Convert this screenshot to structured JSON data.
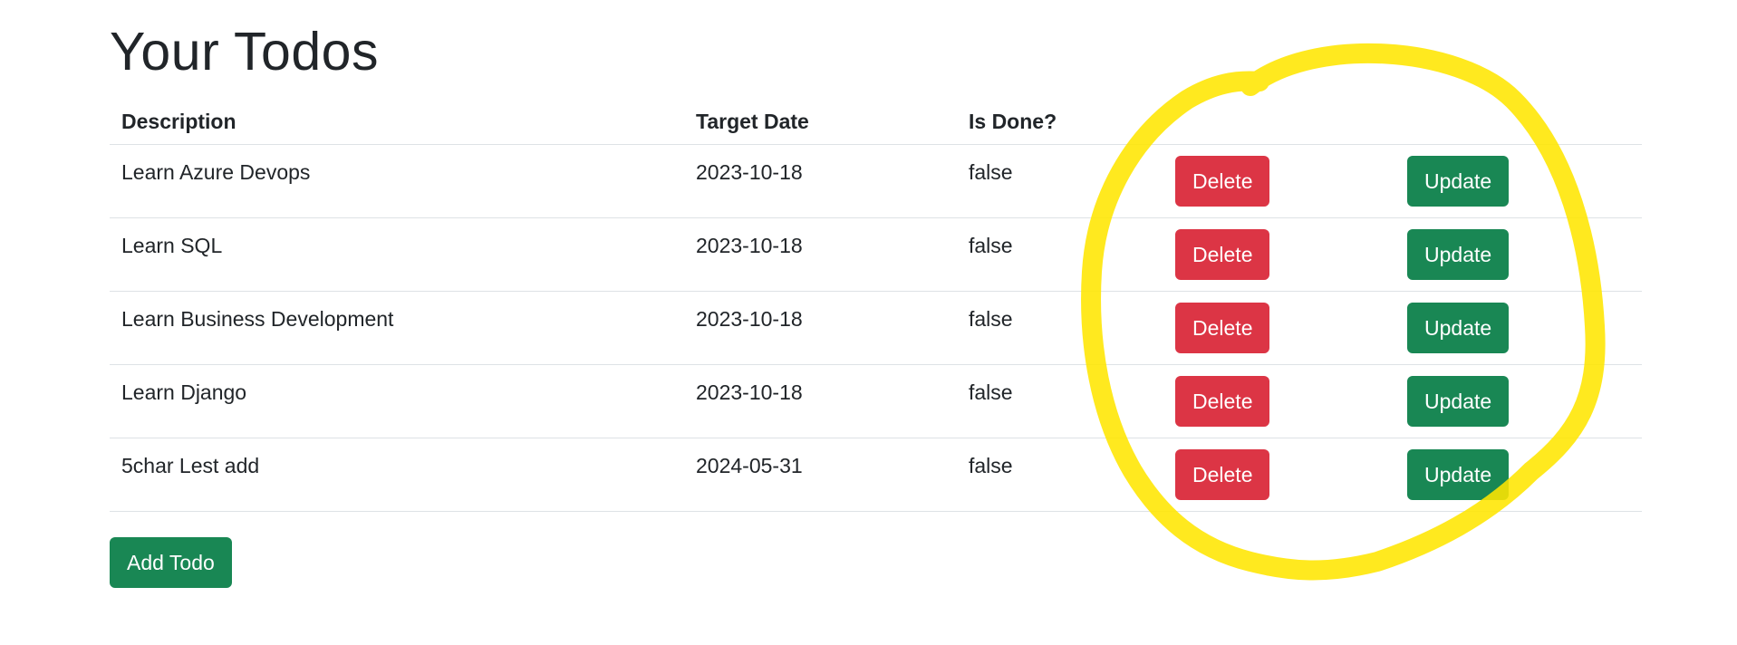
{
  "page": {
    "title": "Your Todos",
    "add_button_label": "Add Todo"
  },
  "table": {
    "headers": {
      "description": "Description",
      "target_date": "Target Date",
      "is_done": "Is Done?"
    },
    "rows": [
      {
        "description": "Learn Azure Devops",
        "target_date": "2023-10-18",
        "is_done": "false",
        "delete_label": "Delete",
        "update_label": "Update"
      },
      {
        "description": "Learn SQL",
        "target_date": "2023-10-18",
        "is_done": "false",
        "delete_label": "Delete",
        "update_label": "Update"
      },
      {
        "description": "Learn Business Development",
        "target_date": "2023-10-18",
        "is_done": "false",
        "delete_label": "Delete",
        "update_label": "Update"
      },
      {
        "description": "Learn Django",
        "target_date": "2023-10-18",
        "is_done": "false",
        "delete_label": "Delete",
        "update_label": "Update"
      },
      {
        "description": "5char Lest add",
        "target_date": "2024-05-31",
        "is_done": "false",
        "delete_label": "Delete",
        "update_label": "Update"
      }
    ]
  },
  "colors": {
    "danger": "#dc3545",
    "success": "#198754",
    "highlight": "#ffe600"
  }
}
